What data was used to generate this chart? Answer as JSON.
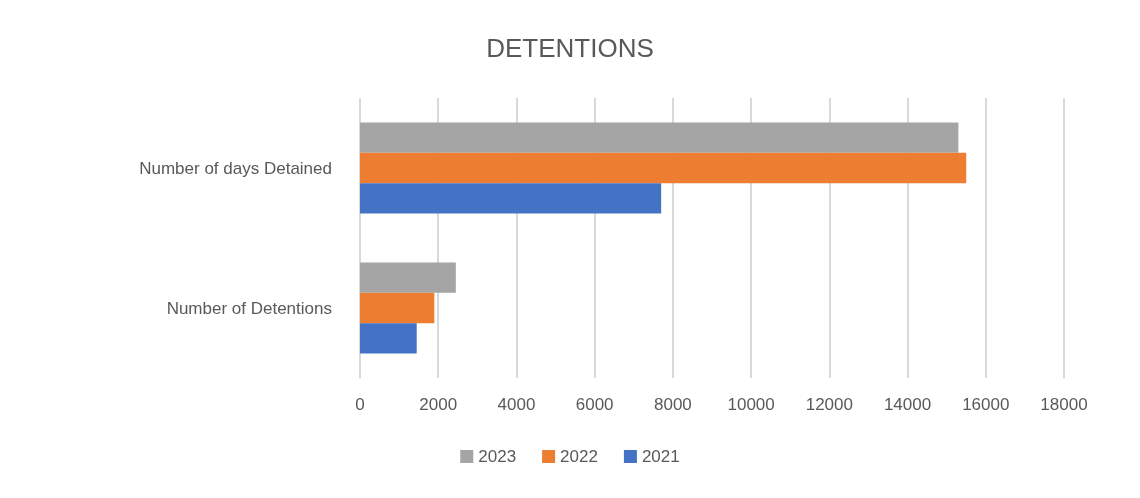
{
  "chart_data": {
    "type": "bar",
    "orientation": "horizontal",
    "title": "DETENTIONS",
    "categories": [
      "Number of days Detained",
      "Number of Detentions"
    ],
    "series": [
      {
        "name": "2023",
        "color": "#a5a5a5",
        "values": [
          15300,
          2450
        ]
      },
      {
        "name": "2022",
        "color": "#ed7d31",
        "values": [
          15500,
          1900
        ]
      },
      {
        "name": "2021",
        "color": "#4472c4",
        "values": [
          7700,
          1450
        ]
      }
    ],
    "xlim": [
      0,
      18000
    ],
    "xticks": [
      0,
      2000,
      4000,
      6000,
      8000,
      10000,
      12000,
      14000,
      16000,
      18000
    ],
    "grid": "x",
    "legend": "bottom"
  }
}
